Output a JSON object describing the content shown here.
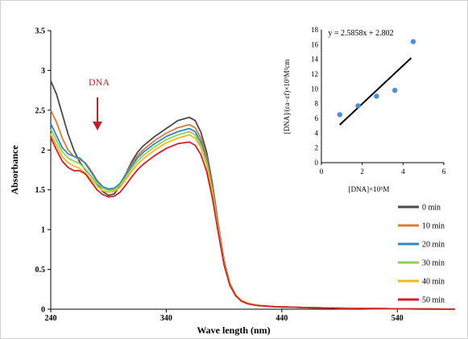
{
  "chart_data": [
    {
      "type": "line",
      "xlabel": "Wave length  (nm)",
      "ylabel": "Absorbance",
      "xlim": [
        240,
        590
      ],
      "ylim": [
        0,
        3.5
      ],
      "xticks": [
        240,
        340,
        440,
        540
      ],
      "yticks": [
        0,
        0.5,
        1,
        1.5,
        2,
        2.5,
        3,
        3.5
      ],
      "ytick_labels": [
        "0",
        "0.5",
        "1",
        "1.5",
        "2",
        "2.5",
        "3",
        "3.5"
      ],
      "annotation": "DNA",
      "annotation_arrow": "down",
      "legend_position": "right",
      "x": [
        240,
        245,
        250,
        255,
        260,
        265,
        270,
        275,
        280,
        285,
        290,
        295,
        300,
        305,
        310,
        315,
        320,
        330,
        340,
        350,
        360,
        365,
        370,
        375,
        380,
        385,
        390,
        395,
        400,
        405,
        410,
        415,
        420,
        425,
        430,
        435,
        440,
        450,
        460,
        480,
        500,
        520,
        540,
        560,
        590
      ],
      "series": [
        {
          "name": "0 min",
          "color": "#4a4a4a",
          "values": [
            2.87,
            2.7,
            2.45,
            2.2,
            2.0,
            1.85,
            1.75,
            1.67,
            1.58,
            1.48,
            1.43,
            1.45,
            1.55,
            1.7,
            1.85,
            1.97,
            2.05,
            2.17,
            2.27,
            2.37,
            2.41,
            2.37,
            2.22,
            1.97,
            1.57,
            1.07,
            0.62,
            0.33,
            0.18,
            0.11,
            0.08,
            0.06,
            0.05,
            0.04,
            0.035,
            0.03,
            0.028,
            0.025,
            0.02,
            0.015,
            0.01,
            0.008,
            0.005,
            0.003,
            0.0
          ]
        },
        {
          "name": "10 min",
          "color": "#d97a3a",
          "values": [
            2.5,
            2.35,
            2.15,
            2.0,
            1.92,
            1.88,
            1.84,
            1.74,
            1.62,
            1.54,
            1.5,
            1.5,
            1.58,
            1.7,
            1.82,
            1.93,
            2.0,
            2.12,
            2.21,
            2.28,
            2.32,
            2.28,
            2.15,
            1.91,
            1.53,
            1.05,
            0.61,
            0.33,
            0.18,
            0.11,
            0.08,
            0.06,
            0.05,
            0.04,
            0.035,
            0.03,
            0.028,
            0.025,
            0.02,
            0.015,
            0.01,
            0.008,
            0.005,
            0.003,
            0.0
          ]
        },
        {
          "name": "20 min",
          "color": "#2f86c9",
          "values": [
            2.33,
            2.18,
            2.03,
            1.95,
            1.92,
            1.9,
            1.83,
            1.72,
            1.61,
            1.54,
            1.51,
            1.52,
            1.58,
            1.69,
            1.8,
            1.9,
            1.97,
            2.08,
            2.17,
            2.23,
            2.27,
            2.23,
            2.1,
            1.87,
            1.5,
            1.03,
            0.6,
            0.32,
            0.18,
            0.11,
            0.08,
            0.06,
            0.05,
            0.04,
            0.035,
            0.03,
            0.028,
            0.025,
            0.02,
            0.015,
            0.01,
            0.008,
            0.005,
            0.003,
            0.0
          ]
        },
        {
          "name": "30 min",
          "color": "#8fcf5a",
          "values": [
            2.26,
            2.12,
            1.98,
            1.9,
            1.86,
            1.83,
            1.76,
            1.67,
            1.58,
            1.52,
            1.49,
            1.5,
            1.56,
            1.66,
            1.77,
            1.86,
            1.93,
            2.04,
            2.13,
            2.19,
            2.23,
            2.19,
            2.06,
            1.84,
            1.48,
            1.02,
            0.59,
            0.32,
            0.18,
            0.11,
            0.08,
            0.06,
            0.05,
            0.04,
            0.035,
            0.03,
            0.028,
            0.025,
            0.02,
            0.015,
            0.01,
            0.008,
            0.005,
            0.003,
            0.0
          ]
        },
        {
          "name": "40 min",
          "color": "#f2b81c",
          "values": [
            2.2,
            2.06,
            1.92,
            1.84,
            1.8,
            1.77,
            1.71,
            1.63,
            1.55,
            1.49,
            1.47,
            1.48,
            1.53,
            1.63,
            1.73,
            1.82,
            1.89,
            2.0,
            2.09,
            2.15,
            2.19,
            2.15,
            2.03,
            1.81,
            1.46,
            1.0,
            0.58,
            0.31,
            0.17,
            0.11,
            0.08,
            0.06,
            0.05,
            0.04,
            0.035,
            0.03,
            0.028,
            0.025,
            0.02,
            0.015,
            0.01,
            0.008,
            0.005,
            0.003,
            0.0
          ]
        },
        {
          "name": "50 min",
          "color": "#d0202a",
          "values": [
            2.16,
            2.0,
            1.86,
            1.78,
            1.74,
            1.74,
            1.7,
            1.6,
            1.5,
            1.44,
            1.41,
            1.42,
            1.47,
            1.56,
            1.66,
            1.75,
            1.82,
            1.93,
            2.02,
            2.08,
            2.1,
            2.06,
            1.94,
            1.73,
            1.39,
            0.96,
            0.56,
            0.3,
            0.17,
            0.1,
            0.07,
            0.055,
            0.045,
            0.04,
            0.035,
            0.03,
            0.028,
            0.025,
            0.02,
            0.015,
            0.01,
            0.008,
            0.005,
            0.003,
            0.0
          ]
        }
      ]
    },
    {
      "type": "scatter",
      "role": "inset",
      "equation": "y = 2.5858x  + 2.802",
      "xlabel": "[DNA]×10⁵M",
      "ylabel": "[DNA]/(εa−εf)×10⁹M²cm",
      "xlim": [
        0,
        6
      ],
      "ylim": [
        0,
        18
      ],
      "xticks": [
        0,
        2,
        4,
        6
      ],
      "yticks": [
        0,
        2,
        4,
        6,
        8,
        10,
        12,
        14,
        16,
        18
      ],
      "points_color": "#4a90d9",
      "trendline_color": "#000000",
      "x": [
        0.9,
        1.8,
        2.7,
        3.6,
        4.5
      ],
      "y": [
        6.5,
        7.7,
        9.0,
        9.8,
        16.4
      ],
      "fit": {
        "slope": 2.5858,
        "intercept": 2.802,
        "x_range": [
          0.9,
          4.4
        ]
      }
    }
  ]
}
